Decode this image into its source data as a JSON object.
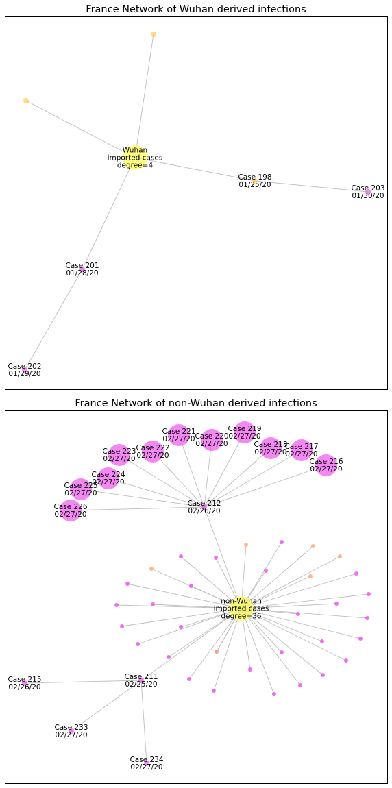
{
  "panels": [
    {
      "title": "France Network of Wuhan derived infections",
      "nodes": [
        {
          "id": "w_hub",
          "lines": [
            "Wuhan",
            "imported cases",
            "degree=4"
          ],
          "color": "#ffff4d",
          "size": "hub"
        },
        {
          "id": "w_top",
          "lines": [],
          "color": "#ffcc55",
          "size": "small"
        },
        {
          "id": "w_left",
          "lines": [],
          "color": "#ffcc55",
          "size": "small"
        },
        {
          "id": "c198",
          "lines": [
            "Case 198",
            "01/25/20"
          ],
          "color": "#ffcc55",
          "size": "small"
        },
        {
          "id": "c203",
          "lines": [
            "Case 203",
            "01/30/20"
          ],
          "color": "#ee55ee",
          "size": "small"
        },
        {
          "id": "c201",
          "lines": [
            "Case 201",
            "01/28/20"
          ],
          "color": "#ee55ee",
          "size": "small"
        },
        {
          "id": "c202",
          "lines": [
            "Case 202",
            "01/29/20"
          ],
          "color": "#ee55ee",
          "size": "small"
        }
      ],
      "edges": [
        [
          "w_hub",
          "w_top"
        ],
        [
          "w_hub",
          "w_left"
        ],
        [
          "w_hub",
          "c198"
        ],
        [
          "c198",
          "c203"
        ],
        [
          "w_hub",
          "c201"
        ],
        [
          "c201",
          "c202"
        ]
      ]
    },
    {
      "title": "France Network of non-Wuhan derived infections",
      "nodes": [
        {
          "id": "nw_hub",
          "lines": [
            "non-Wuhan",
            "imported cases",
            "degree=36"
          ],
          "color": "#ffff4d",
          "size": "hub"
        },
        {
          "id": "c212",
          "lines": [
            "Case 212",
            "02/26/20"
          ],
          "color": "#ee55ee",
          "size": "small"
        },
        {
          "id": "c216",
          "lines": [
            "Case 216",
            "02/27/20"
          ],
          "color": "#ee55ee",
          "size": "large"
        },
        {
          "id": "c217",
          "lines": [
            "Case 217",
            "02/27/20"
          ],
          "color": "#ee55ee",
          "size": "large"
        },
        {
          "id": "c218",
          "lines": [
            "Case 218",
            "02/27/20"
          ],
          "color": "#ee55ee",
          "size": "large"
        },
        {
          "id": "c219",
          "lines": [
            "Case 219",
            "02/27/20"
          ],
          "color": "#ee55ee",
          "size": "large"
        },
        {
          "id": "c220",
          "lines": [
            "Case 220",
            "02/27/20"
          ],
          "color": "#ee55ee",
          "size": "large"
        },
        {
          "id": "c221",
          "lines": [
            "Case 221",
            "02/27/20"
          ],
          "color": "#ee55ee",
          "size": "large"
        },
        {
          "id": "c222",
          "lines": [
            "Case 222",
            "02/27/20"
          ],
          "color": "#ee55ee",
          "size": "large"
        },
        {
          "id": "c223",
          "lines": [
            "Case 223",
            "02/27/20"
          ],
          "color": "#ee55ee",
          "size": "large"
        },
        {
          "id": "c224",
          "lines": [
            "Case 224",
            "02/27/20"
          ],
          "color": "#ee55ee",
          "size": "large"
        },
        {
          "id": "c225",
          "lines": [
            "Case 225",
            "02/27/20"
          ],
          "color": "#ee55ee",
          "size": "large"
        },
        {
          "id": "c226",
          "lines": [
            "Case 226",
            "02/27/20"
          ],
          "color": "#ee55ee",
          "size": "large"
        },
        {
          "id": "c211",
          "lines": [
            "Case 211",
            "02/25/20"
          ],
          "color": "#ee55ee",
          "size": "small"
        },
        {
          "id": "c215",
          "lines": [
            "Case 215",
            "02/26/20"
          ],
          "color": "#ee55ee",
          "size": "small"
        },
        {
          "id": "c233",
          "lines": [
            "Case 233",
            "02/27/20"
          ],
          "color": "#ee55ee",
          "size": "small"
        },
        {
          "id": "c234",
          "lines": [
            "Case 234",
            "02/27/20"
          ],
          "color": "#ee55ee",
          "size": "small"
        },
        {
          "id": "p1",
          "lines": [],
          "color": "#ffaa77",
          "size": "dot"
        },
        {
          "id": "p2",
          "lines": [],
          "color": "#ee55ee",
          "size": "dot"
        },
        {
          "id": "p3",
          "lines": [],
          "color": "#ffaa77",
          "size": "dot"
        },
        {
          "id": "p4",
          "lines": [],
          "color": "#ffaa77",
          "size": "dot"
        },
        {
          "id": "p5",
          "lines": [],
          "color": "#ee55ee",
          "size": "dot"
        },
        {
          "id": "p6",
          "lines": [],
          "color": "#ee55ee",
          "size": "dot"
        },
        {
          "id": "p7",
          "lines": [],
          "color": "#ee55ee",
          "size": "dot"
        },
        {
          "id": "p8",
          "lines": [],
          "color": "#ffaa77",
          "size": "dot"
        },
        {
          "id": "p9",
          "lines": [],
          "color": "#ee55ee",
          "size": "dot"
        },
        {
          "id": "p10",
          "lines": [],
          "color": "#ffaa77",
          "size": "dot"
        },
        {
          "id": "p11",
          "lines": [],
          "color": "#ee55ee",
          "size": "dot"
        },
        {
          "id": "p12",
          "lines": [],
          "color": "#ee55ee",
          "size": "dot"
        },
        {
          "id": "p13",
          "lines": [],
          "color": "#ee55ee",
          "size": "dot"
        },
        {
          "id": "p14",
          "lines": [],
          "color": "#ee55ee",
          "size": "dot"
        },
        {
          "id": "p15",
          "lines": [],
          "color": "#ee55ee",
          "size": "dot"
        },
        {
          "id": "p16",
          "lines": [],
          "color": "#ee55ee",
          "size": "dot"
        },
        {
          "id": "p17",
          "lines": [],
          "color": "#ee55ee",
          "size": "dot"
        },
        {
          "id": "p18",
          "lines": [],
          "color": "#ee55ee",
          "size": "dot"
        },
        {
          "id": "p19",
          "lines": [],
          "color": "#ee55ee",
          "size": "dot"
        },
        {
          "id": "p20",
          "lines": [],
          "color": "#ee55ee",
          "size": "dot"
        },
        {
          "id": "p21",
          "lines": [],
          "color": "#ee55ee",
          "size": "dot"
        },
        {
          "id": "p22",
          "lines": [],
          "color": "#ee55ee",
          "size": "dot"
        },
        {
          "id": "p23",
          "lines": [],
          "color": "#ee55ee",
          "size": "dot"
        },
        {
          "id": "p24",
          "lines": [],
          "color": "#ee55ee",
          "size": "dot"
        },
        {
          "id": "p25",
          "lines": [],
          "color": "#ee55ee",
          "size": "dot"
        },
        {
          "id": "p26",
          "lines": [],
          "color": "#ee55ee",
          "size": "dot"
        },
        {
          "id": "p27",
          "lines": [],
          "color": "#ee55ee",
          "size": "dot"
        },
        {
          "id": "p28",
          "lines": [],
          "color": "#ffaa77",
          "size": "dot"
        },
        {
          "id": "p29",
          "lines": [],
          "color": "#ee55ee",
          "size": "dot"
        },
        {
          "id": "p30",
          "lines": [],
          "color": "#ee55ee",
          "size": "dot"
        },
        {
          "id": "p31",
          "lines": [],
          "color": "#ee55ee",
          "size": "dot"
        },
        {
          "id": "p32",
          "lines": [],
          "color": "#ee55ee",
          "size": "dot"
        },
        {
          "id": "p33",
          "lines": [],
          "color": "#ee55ee",
          "size": "dot"
        },
        {
          "id": "p34",
          "lines": [],
          "color": "#ee55ee",
          "size": "dot"
        }
      ],
      "edges": [
        [
          "nw_hub",
          "c212"
        ],
        [
          "c212",
          "c216"
        ],
        [
          "c212",
          "c217"
        ],
        [
          "c212",
          "c218"
        ],
        [
          "c212",
          "c219"
        ],
        [
          "c212",
          "c220"
        ],
        [
          "c212",
          "c221"
        ],
        [
          "c212",
          "c222"
        ],
        [
          "c212",
          "c223"
        ],
        [
          "c212",
          "c224"
        ],
        [
          "c212",
          "c225"
        ],
        [
          "c212",
          "c226"
        ],
        [
          "nw_hub",
          "c211"
        ],
        [
          "c211",
          "c215"
        ],
        [
          "c211",
          "c233"
        ],
        [
          "c211",
          "c234"
        ],
        [
          "nw_hub",
          "p1"
        ],
        [
          "nw_hub",
          "p2"
        ],
        [
          "nw_hub",
          "p3"
        ],
        [
          "nw_hub",
          "p4"
        ],
        [
          "nw_hub",
          "p5"
        ],
        [
          "nw_hub",
          "p6"
        ],
        [
          "nw_hub",
          "p7"
        ],
        [
          "nw_hub",
          "p8"
        ],
        [
          "nw_hub",
          "p9"
        ],
        [
          "nw_hub",
          "p10"
        ],
        [
          "nw_hub",
          "p11"
        ],
        [
          "nw_hub",
          "p12"
        ],
        [
          "nw_hub",
          "p13"
        ],
        [
          "nw_hub",
          "p14"
        ],
        [
          "nw_hub",
          "p15"
        ],
        [
          "nw_hub",
          "p16"
        ],
        [
          "nw_hub",
          "p17"
        ],
        [
          "nw_hub",
          "p18"
        ],
        [
          "nw_hub",
          "p19"
        ],
        [
          "nw_hub",
          "p20"
        ],
        [
          "nw_hub",
          "p21"
        ],
        [
          "nw_hub",
          "p22"
        ],
        [
          "nw_hub",
          "p23"
        ],
        [
          "nw_hub",
          "p24"
        ],
        [
          "nw_hub",
          "p25"
        ],
        [
          "nw_hub",
          "p26"
        ],
        [
          "nw_hub",
          "p27"
        ],
        [
          "nw_hub",
          "p28"
        ],
        [
          "nw_hub",
          "p29"
        ],
        [
          "nw_hub",
          "p30"
        ],
        [
          "nw_hub",
          "p31"
        ],
        [
          "nw_hub",
          "p32"
        ],
        [
          "nw_hub",
          "p33"
        ],
        [
          "nw_hub",
          "p34"
        ]
      ]
    }
  ]
}
